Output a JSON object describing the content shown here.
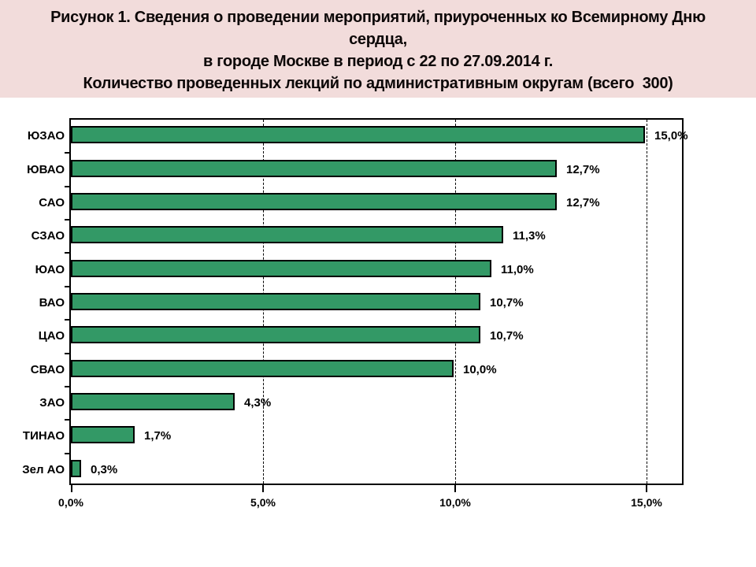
{
  "title": {
    "lines": [
      "Рисунок 1. Сведения о проведении мероприятий, приуроченных ко Всемирному Дню",
      "сердца,",
      "в городе Москве в период с 22 по 27.09.2014 г.",
      "Количество проведенных лекций по административным округам (всего  300)"
    ],
    "background_color": "#f2dcdb",
    "text_color": "#0d0808"
  },
  "chart_data": {
    "type": "bar",
    "orientation": "horizontal",
    "categories": [
      "ЮЗАО",
      "ЮВАО",
      "САО",
      "СЗАО",
      "ЮАО",
      "ВАО",
      "ЦАО",
      "СВАО",
      "ЗАО",
      "ТИНАО",
      "Зел АО"
    ],
    "values": [
      15.0,
      12.7,
      12.7,
      11.3,
      11.0,
      10.7,
      10.7,
      10.0,
      4.3,
      1.7,
      0.3
    ],
    "value_labels": [
      "15,0%",
      "12,7%",
      "12,7%",
      "11,3%",
      "11,0%",
      "10,7%",
      "10,7%",
      "10,0%",
      "4,3%",
      "1,7%",
      "0,3%"
    ],
    "x_tick_labels": [
      "0,0%",
      "5,0%",
      "10,0%",
      "15,0%"
    ],
    "x_tick_values": [
      0,
      5,
      10,
      15
    ],
    "xlim": [
      0,
      16
    ],
    "grid": "vertical-dashed",
    "legend": "none",
    "bar_color": "#339966",
    "bar_border_color": "#000000",
    "label_color": "#000000",
    "plot_background": "#ffffff"
  }
}
